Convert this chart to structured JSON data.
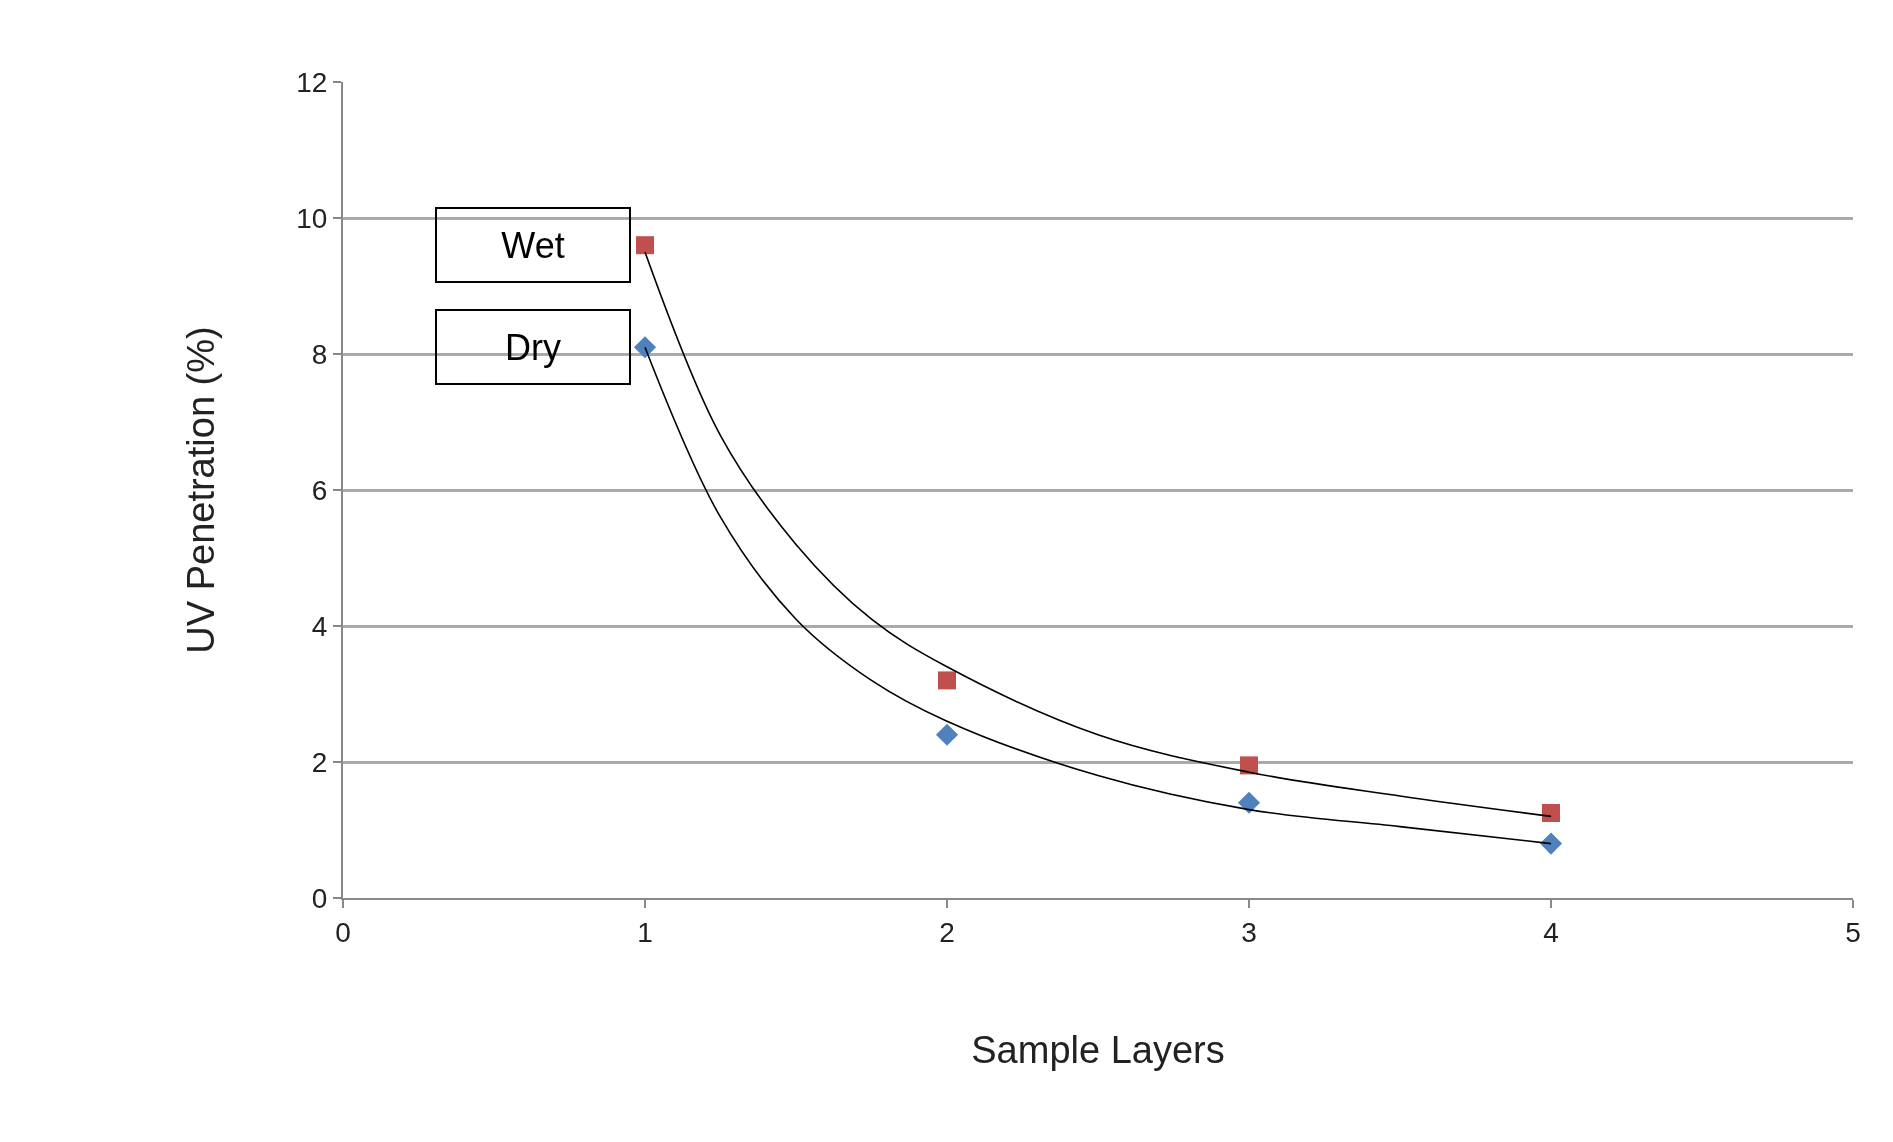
{
  "chart_data": {
    "type": "scatter",
    "xlabel": "Sample Layers",
    "ylabel": "UV Penetration (%)",
    "xlim": [
      0,
      5
    ],
    "xticks": [
      0,
      1,
      2,
      3,
      4,
      5
    ],
    "ylim": [
      0,
      12
    ],
    "yticks": [
      0,
      2,
      4,
      6,
      8,
      10,
      12
    ],
    "grid": "y",
    "legend": false,
    "series": [
      {
        "name": "Wet",
        "marker": "square",
        "color": "#c0504d",
        "x": [
          1,
          2,
          3,
          4
        ],
        "values": [
          9.6,
          3.2,
          1.95,
          1.25
        ]
      },
      {
        "name": "Dry",
        "marker": "diamond",
        "color": "#4f81bd",
        "x": [
          1,
          2,
          3,
          4
        ],
        "values": [
          8.1,
          2.4,
          1.4,
          0.8
        ]
      },
      {
        "type": "line",
        "color": "#000000",
        "line_style": "solid",
        "x": [
          1,
          1.25,
          1.5,
          1.75,
          2,
          2.5,
          3,
          3.5,
          4
        ],
        "values": [
          9.5,
          6.8,
          5.2,
          4.1,
          3.4,
          2.4,
          1.85,
          1.5,
          1.2
        ]
      },
      {
        "type": "line",
        "color": "#000000",
        "line_style": "solid",
        "x": [
          1,
          1.25,
          1.5,
          1.75,
          2,
          2.5,
          3,
          3.5,
          4
        ],
        "values": [
          8.1,
          5.6,
          4.1,
          3.2,
          2.6,
          1.8,
          1.3,
          1.05,
          0.8
        ]
      }
    ]
  }
}
